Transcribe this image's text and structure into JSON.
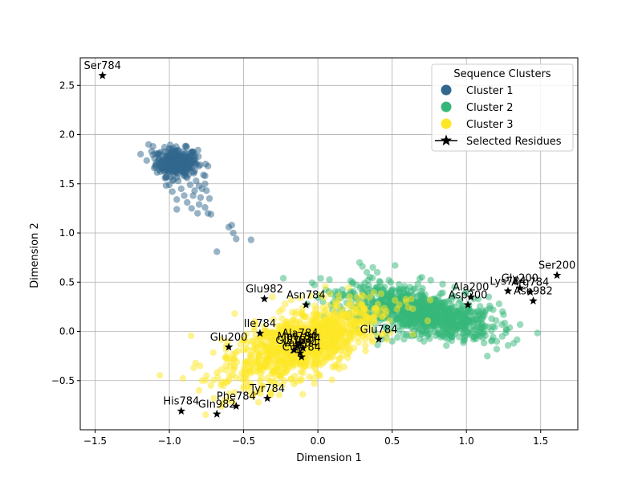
{
  "chart_data": {
    "type": "scatter",
    "xlabel": "Dimension 1",
    "ylabel": "Dimension 2",
    "xlim": [
      -1.6,
      1.75
    ],
    "ylim": [
      -1.0,
      2.78
    ],
    "x_ticks": [
      -1.5,
      -1.0,
      -0.5,
      0.0,
      0.5,
      1.0,
      1.5
    ],
    "y_ticks": [
      -0.5,
      0.0,
      0.5,
      1.0,
      1.5,
      2.0,
      2.5
    ],
    "x_tick_labels": [
      "−1.5",
      "−1.0",
      "−0.5",
      "0.0",
      "0.5",
      "1.0",
      "1.5"
    ],
    "y_tick_labels": [
      "−0.5",
      "0.0",
      "0.5",
      "1.0",
      "1.5",
      "2.0",
      "2.5"
    ],
    "grid": true,
    "legend": {
      "title": "Sequence Clusters",
      "placement": "top-right",
      "entries": [
        "Cluster 1",
        "Cluster 2",
        "Cluster 3",
        "Selected Residues"
      ]
    },
    "clusters": [
      {
        "name": "Cluster 1",
        "color": "#31688e",
        "dense_region": {
          "center": [
            -0.95,
            1.72
          ],
          "spread": [
            0.07,
            0.07
          ],
          "count": 300
        },
        "points": [
          [
            -1.14,
            1.9
          ],
          [
            -1.12,
            1.83
          ],
          [
            -1.1,
            1.76
          ],
          [
            -1.07,
            1.64
          ],
          [
            -1.03,
            1.56
          ],
          [
            -1.0,
            1.49
          ],
          [
            -0.98,
            1.42
          ],
          [
            -0.95,
            1.34
          ],
          [
            -0.95,
            1.24
          ],
          [
            -0.92,
            1.45
          ],
          [
            -0.9,
            1.38
          ],
          [
            -0.88,
            1.31
          ],
          [
            -0.86,
            1.49
          ],
          [
            -0.85,
            1.25
          ],
          [
            -0.84,
            1.38
          ],
          [
            -0.83,
            1.43
          ],
          [
            -0.81,
            1.2
          ],
          [
            -0.8,
            1.29
          ],
          [
            -0.79,
            1.36
          ],
          [
            -0.78,
            1.45
          ],
          [
            -0.77,
            1.59
          ],
          [
            -0.76,
            1.5
          ],
          [
            -0.75,
            1.43
          ],
          [
            -0.74,
            1.68
          ],
          [
            -0.73,
            1.35
          ],
          [
            -0.76,
            1.26
          ],
          [
            -0.74,
            1.2
          ],
          [
            -0.72,
            1.19
          ],
          [
            -0.94,
            1.53
          ],
          [
            -0.9,
            1.61
          ],
          [
            -0.88,
            1.56
          ],
          [
            -0.86,
            1.66
          ],
          [
            -0.84,
            1.62
          ],
          [
            -0.96,
            1.62
          ],
          [
            -1.02,
            1.66
          ],
          [
            -1.05,
            1.72
          ],
          [
            -1.08,
            1.8
          ],
          [
            -1.11,
            1.88
          ],
          [
            -0.82,
            1.53
          ],
          [
            -0.8,
            1.48
          ],
          [
            -0.6,
            1.06
          ],
          [
            -0.58,
            1.08
          ],
          [
            -0.57,
            1.0
          ],
          [
            -0.55,
            0.94
          ],
          [
            -0.45,
            0.93
          ],
          [
            -0.68,
            0.81
          ]
        ]
      },
      {
        "name": "Cluster 2",
        "color": "#35b779",
        "dense_region": {
          "center": [
            0.68,
            0.19
          ],
          "spread": [
            0.2,
            0.1
          ],
          "count": 1000
        },
        "points": [
          [
            0.28,
            0.7
          ],
          [
            0.3,
            0.66
          ],
          [
            0.33,
            0.6
          ],
          [
            0.35,
            0.55
          ],
          [
            0.37,
            0.65
          ],
          [
            0.4,
            0.6
          ],
          [
            0.42,
            0.5
          ],
          [
            0.45,
            0.45
          ],
          [
            0.52,
            0.67
          ],
          [
            0.3,
            0.4
          ],
          [
            0.32,
            0.3
          ],
          [
            0.34,
            0.2
          ],
          [
            0.36,
            0.1
          ],
          [
            0.38,
            0.0
          ],
          [
            0.4,
            -0.05
          ],
          [
            0.43,
            -0.08
          ],
          [
            0.5,
            -0.1
          ],
          [
            0.58,
            -0.08
          ],
          [
            0.65,
            -0.04
          ],
          [
            0.75,
            -0.02
          ],
          [
            0.85,
            0.02
          ],
          [
            0.95,
            0.05
          ],
          [
            1.05,
            0.1
          ],
          [
            1.12,
            0.16
          ],
          [
            1.18,
            0.22
          ],
          [
            1.22,
            0.28
          ],
          [
            1.15,
            0.35
          ],
          [
            1.08,
            0.33
          ],
          [
            1.0,
            0.4
          ],
          [
            0.92,
            0.45
          ],
          [
            0.84,
            0.48
          ],
          [
            0.76,
            0.52
          ],
          [
            0.7,
            0.55
          ],
          [
            1.2,
            0.11
          ],
          [
            1.25,
            0.17
          ],
          [
            0.48,
            0.35
          ],
          [
            0.55,
            0.4
          ],
          [
            0.62,
            0.45
          ],
          [
            0.46,
            0.25
          ],
          [
            0.54,
            0.05
          ]
        ]
      },
      {
        "name": "Cluster 3",
        "color": "#fde725",
        "dense_region": {
          "center": [
            -0.1,
            -0.12
          ],
          "spread": [
            0.18,
            0.14
          ],
          "count": 1000
        },
        "points": [
          [
            -0.8,
            -0.6
          ],
          [
            -0.78,
            -0.5
          ],
          [
            -0.75,
            -0.45
          ],
          [
            -0.72,
            -0.55
          ],
          [
            -0.7,
            -0.68
          ],
          [
            -0.68,
            -0.42
          ],
          [
            -0.65,
            -0.76
          ],
          [
            -0.62,
            -0.35
          ],
          [
            -0.6,
            -0.7
          ],
          [
            -0.58,
            -0.28
          ],
          [
            -0.56,
            -0.62
          ],
          [
            -0.54,
            -0.2
          ],
          [
            -0.52,
            -0.48
          ],
          [
            -0.5,
            -0.58
          ],
          [
            -0.48,
            -0.12
          ],
          [
            -0.46,
            -0.4
          ],
          [
            -0.44,
            -0.66
          ],
          [
            -0.42,
            -0.05
          ],
          [
            -0.4,
            -0.3
          ],
          [
            -0.38,
            -0.55
          ],
          [
            -0.36,
            0.05
          ],
          [
            -0.34,
            -0.2
          ],
          [
            -0.32,
            -0.62
          ],
          [
            -0.3,
            0.12
          ],
          [
            -0.28,
            -0.45
          ],
          [
            -0.26,
            0.2
          ],
          [
            -0.22,
            0.28
          ],
          [
            -0.18,
            0.32
          ],
          [
            -0.12,
            0.34
          ],
          [
            -0.05,
            0.36
          ],
          [
            0.02,
            0.37
          ],
          [
            0.08,
            0.38
          ],
          [
            0.12,
            0.3
          ],
          [
            0.16,
            0.22
          ],
          [
            0.2,
            0.15
          ],
          [
            0.24,
            0.08
          ],
          [
            0.22,
            -0.02
          ],
          [
            0.18,
            -0.1
          ],
          [
            0.12,
            -0.2
          ],
          [
            0.05,
            -0.3
          ],
          [
            -0.02,
            -0.38
          ],
          [
            -0.1,
            -0.42
          ],
          [
            -0.18,
            -0.48
          ],
          [
            -0.24,
            -0.55
          ],
          [
            -0.56,
            0.18
          ],
          [
            -0.4,
            -0.72
          ],
          [
            -0.6,
            -0.5
          ],
          [
            -0.45,
            -0.1
          ],
          [
            -0.35,
            -0.35
          ],
          [
            -0.2,
            -0.05
          ]
        ]
      }
    ],
    "selected_residues": {
      "name": "Selected Residues",
      "marker": "star",
      "color": "#000000",
      "points": [
        {
          "label": "Ser784",
          "x": -1.45,
          "y": 2.6
        },
        {
          "label": "Ser200",
          "x": 1.61,
          "y": 0.57
        },
        {
          "label": "Gly200",
          "x": 1.36,
          "y": 0.44
        },
        {
          "label": "Lys784",
          "x": 1.28,
          "y": 0.41
        },
        {
          "label": "Arg784",
          "x": 1.43,
          "y": 0.4
        },
        {
          "label": "Asn982",
          "x": 1.45,
          "y": 0.31
        },
        {
          "label": "Ala200",
          "x": 1.03,
          "y": 0.35
        },
        {
          "label": "Asp200",
          "x": 1.01,
          "y": 0.27
        },
        {
          "label": "Glu982",
          "x": -0.36,
          "y": 0.33
        },
        {
          "label": "Asn784",
          "x": -0.08,
          "y": 0.27
        },
        {
          "label": "Ile784",
          "x": -0.39,
          "y": -0.02
        },
        {
          "label": "Glu200",
          "x": -0.6,
          "y": -0.16
        },
        {
          "label": "Ala784",
          "x": -0.12,
          "y": -0.12
        },
        {
          "label": "Met784",
          "x": -0.14,
          "y": -0.15
        },
        {
          "label": "Trp784",
          "x": -0.1,
          "y": -0.17
        },
        {
          "label": "Val784",
          "x": -0.12,
          "y": -0.22
        },
        {
          "label": "Gly784",
          "x": -0.16,
          "y": -0.19
        },
        {
          "label": "Cys784",
          "x": -0.11,
          "y": -0.26
        },
        {
          "label": "Glu784",
          "x": 0.41,
          "y": -0.08
        },
        {
          "label": "Tyr784",
          "x": -0.34,
          "y": -0.68
        },
        {
          "label": "Phe784",
          "x": -0.55,
          "y": -0.76
        },
        {
          "label": "His784",
          "x": -0.92,
          "y": -0.81
        },
        {
          "label": "Gln982",
          "x": -0.68,
          "y": -0.84
        }
      ]
    }
  }
}
